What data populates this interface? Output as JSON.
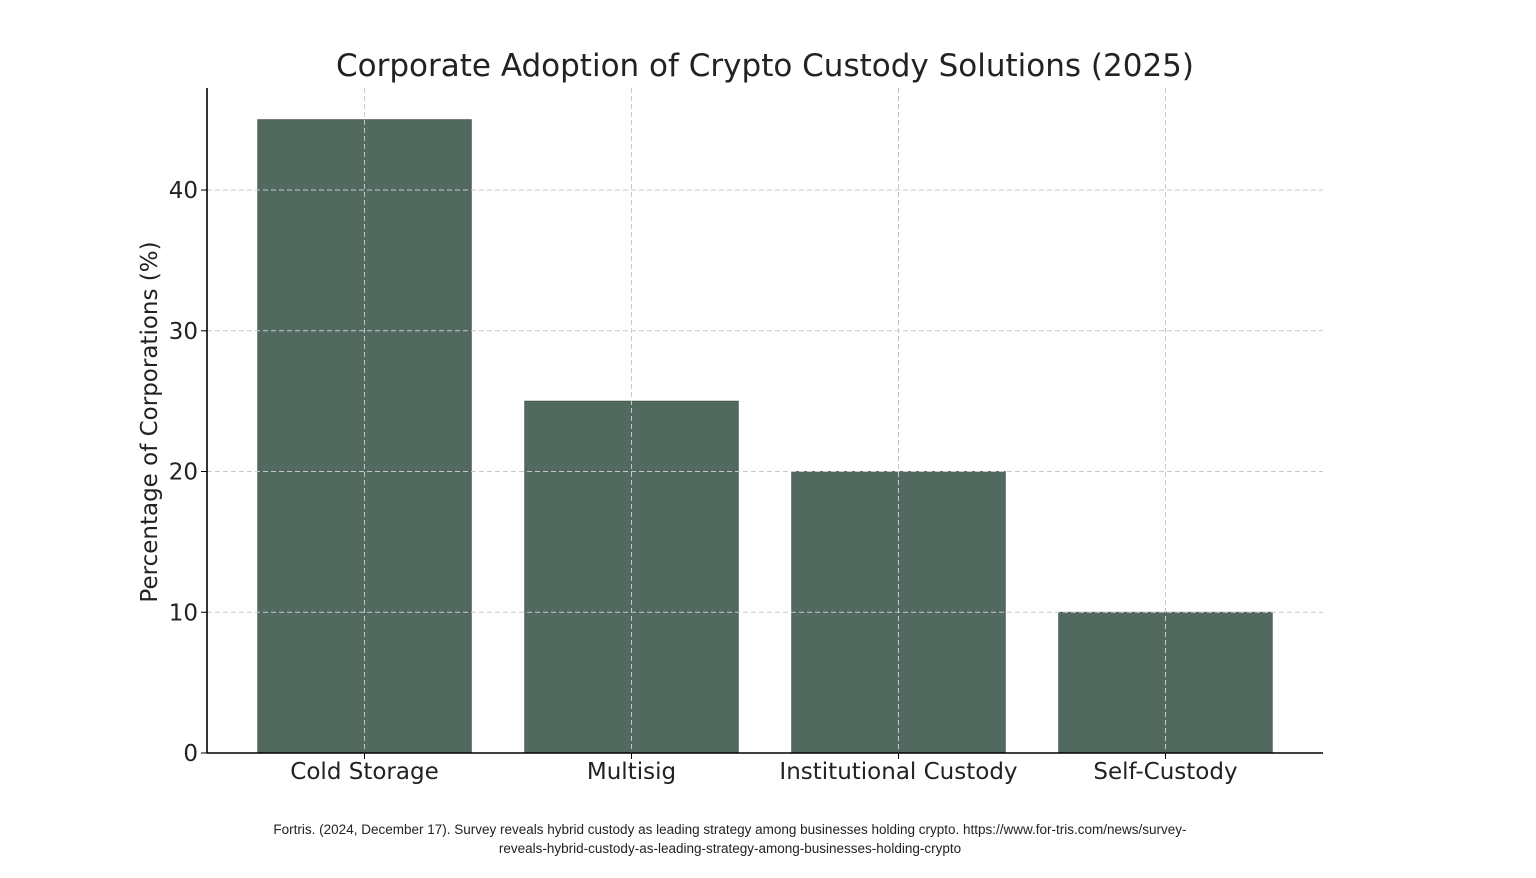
{
  "chart_data": {
    "type": "bar",
    "title": "Corporate Adoption of Crypto Custody Solutions (2025)",
    "xlabel": "",
    "ylabel": "Percentage of Corporations (%)",
    "categories": [
      "Cold Storage",
      "Multisig",
      "Institutional Custody",
      "Self-Custody"
    ],
    "values": [
      45,
      25,
      20,
      10
    ],
    "ylim": [
      0,
      47.25
    ],
    "yticks": [
      0,
      10,
      20,
      30,
      40
    ],
    "grid": true,
    "bar_color": "#52695f"
  },
  "citation": "Fortris. (2024, December 17). Survey reveals hybrid custody as leading strategy among businesses holding crypto. https://www.for-tris.com/news/survey-reveals-hybrid-custody-as-leading-strategy-among-businesses-holding-crypto"
}
